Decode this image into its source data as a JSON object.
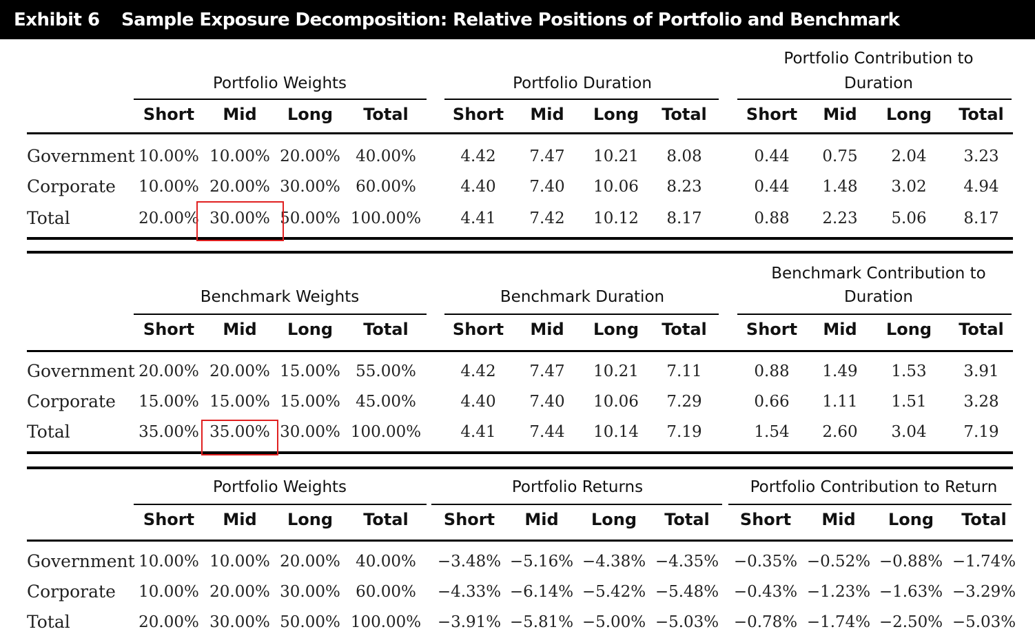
{
  "title": {
    "exhibit": "Exhibit 6",
    "text": "Sample Exposure Decomposition: Relative Positions of Portfolio and Benchmark"
  },
  "col_headers": [
    "Short",
    "Mid",
    "Long",
    "Total"
  ],
  "row_labels": [
    "Government",
    "Corporate",
    "Total"
  ],
  "sections": [
    {
      "groups": [
        [
          "Portfolio Weights"
        ],
        [
          "Portfolio Duration"
        ],
        [
          "Portfolio Contribution to",
          "Duration"
        ]
      ],
      "rows": [
        [
          "10.00%",
          "10.00%",
          "20.00%",
          "40.00%",
          "4.42",
          "7.47",
          "10.21",
          "8.08",
          "0.44",
          "0.75",
          "2.04",
          "3.23"
        ],
        [
          "10.00%",
          "20.00%",
          "30.00%",
          "60.00%",
          "4.40",
          "7.40",
          "10.06",
          "8.23",
          "0.44",
          "1.48",
          "3.02",
          "4.94"
        ],
        [
          "20.00%",
          "30.00%",
          "50.00%",
          "100.00%",
          "4.41",
          "7.42",
          "10.12",
          "8.17",
          "0.88",
          "2.23",
          "5.06",
          "8.17"
        ]
      ]
    },
    {
      "groups": [
        [
          "Benchmark Weights"
        ],
        [
          "Benchmark Duration"
        ],
        [
          "Benchmark Contribution to",
          "Duration"
        ]
      ],
      "rows": [
        [
          "20.00%",
          "20.00%",
          "15.00%",
          "55.00%",
          "4.42",
          "7.47",
          "10.21",
          "7.11",
          "0.88",
          "1.49",
          "1.53",
          "3.91"
        ],
        [
          "15.00%",
          "15.00%",
          "15.00%",
          "45.00%",
          "4.40",
          "7.40",
          "10.06",
          "7.29",
          "0.66",
          "1.11",
          "1.51",
          "3.28"
        ],
        [
          "35.00%",
          "35.00%",
          "30.00%",
          "100.00%",
          "4.41",
          "7.44",
          "10.14",
          "7.19",
          "1.54",
          "2.60",
          "3.04",
          "7.19"
        ]
      ]
    },
    {
      "groups": [
        [
          "Portfolio Weights"
        ],
        [
          "Portfolio Returns"
        ],
        [
          "Portfolio Contribution to Return"
        ]
      ],
      "rows": [
        [
          "10.00%",
          "10.00%",
          "20.00%",
          "40.00%",
          "−3.48%",
          "−5.16%",
          "−4.38%",
          "−4.35%",
          "−0.35%",
          "−0.52%",
          "−0.88%",
          "−1.74%"
        ],
        [
          "10.00%",
          "20.00%",
          "30.00%",
          "60.00%",
          "−4.33%",
          "−6.14%",
          "−5.42%",
          "−5.48%",
          "−0.43%",
          "−1.23%",
          "−1.63%",
          "−3.29%"
        ],
        [
          "20.00%",
          "30.00%",
          "50.00%",
          "100.00%",
          "−3.91%",
          "−5.81%",
          "−5.00%",
          "−5.03%",
          "−0.78%",
          "−1.74%",
          "−2.50%",
          "−5.03%"
        ]
      ]
    }
  ],
  "highlight_color": "#e02020"
}
